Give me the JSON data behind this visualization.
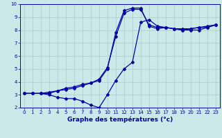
{
  "title": "Graphe des températures (°c)",
  "bg_color": "#cce8e8",
  "grid_color": "#aacccc",
  "line_color": "#0000aa",
  "xlim": [
    -0.5,
    23.5
  ],
  "ylim": [
    2,
    10
  ],
  "xticks": [
    0,
    1,
    2,
    3,
    4,
    5,
    6,
    7,
    8,
    9,
    10,
    11,
    12,
    13,
    14,
    15,
    16,
    17,
    18,
    19,
    20,
    21,
    22,
    23
  ],
  "yticks": [
    2,
    3,
    4,
    5,
    6,
    7,
    8,
    9,
    10
  ],
  "line1_x": [
    0,
    1,
    2,
    3,
    4,
    5,
    6,
    7,
    8,
    9,
    10,
    11,
    12,
    13,
    14,
    15,
    16,
    17,
    18,
    19,
    20,
    21,
    22,
    23
  ],
  "line1_y": [
    3.1,
    3.1,
    3.1,
    3.1,
    3.3,
    3.5,
    3.6,
    3.8,
    3.9,
    4.1,
    5.0,
    7.8,
    9.5,
    9.7,
    9.7,
    8.3,
    8.1,
    8.2,
    8.1,
    8.0,
    8.1,
    8.2,
    8.3,
    8.4
  ],
  "line2_x": [
    0,
    1,
    2,
    3,
    4,
    5,
    6,
    7,
    8,
    9,
    10,
    11,
    12,
    13,
    14,
    15,
    16,
    17,
    18,
    19,
    20,
    21,
    22,
    23
  ],
  "line2_y": [
    3.1,
    3.1,
    3.1,
    3.0,
    2.8,
    2.7,
    2.7,
    2.5,
    2.2,
    2.0,
    3.0,
    4.1,
    5.0,
    5.5,
    8.6,
    8.8,
    8.3,
    8.2,
    8.1,
    8.0,
    8.0,
    8.0,
    8.2,
    8.4
  ],
  "line3_x": [
    0,
    1,
    2,
    3,
    4,
    5,
    6,
    7,
    8,
    9,
    10,
    11,
    12,
    13,
    14,
    15,
    16,
    17,
    18,
    19,
    20,
    21,
    22,
    23
  ],
  "line3_y": [
    3.1,
    3.1,
    3.1,
    3.2,
    3.3,
    3.4,
    3.5,
    3.7,
    3.9,
    4.2,
    5.1,
    7.5,
    9.3,
    9.6,
    9.6,
    8.4,
    8.2,
    8.2,
    8.1,
    8.1,
    8.1,
    8.2,
    8.2,
    8.4
  ],
  "tick_fontsize": 5,
  "xlabel_fontsize": 6.5
}
